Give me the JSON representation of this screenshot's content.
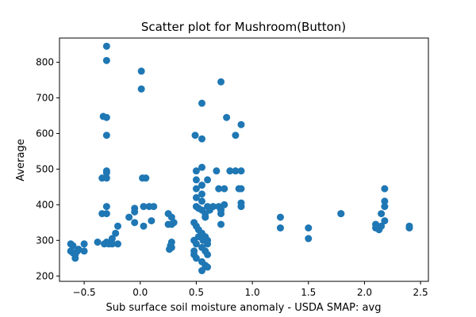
{
  "chart_data": {
    "type": "scatter",
    "title": "Scatter plot for Mushroom(Button)",
    "xlabel": "Sub surface soil moisture anomaly - USDA SMAP: avg",
    "ylabel": "Average",
    "xlim": [
      -0.72,
      2.57
    ],
    "ylim": [
      185,
      868
    ],
    "xticks": [
      -0.5,
      0.0,
      0.5,
      1.0,
      1.5,
      2.0,
      2.5
    ],
    "xtick_labels": [
      "−0.5",
      "0.0",
      "0.5",
      "1.0",
      "1.5",
      "2.0",
      "2.5"
    ],
    "yticks": [
      200,
      300,
      400,
      500,
      600,
      700,
      800
    ],
    "ytick_labels": [
      "200",
      "300",
      "400",
      "500",
      "600",
      "700",
      "800"
    ],
    "grid": false,
    "marker_color": "#1f77b4",
    "points": [
      [
        -0.3,
        845
      ],
      [
        -0.3,
        805
      ],
      [
        0.01,
        775
      ],
      [
        0.01,
        725
      ],
      [
        0.72,
        745
      ],
      [
        0.55,
        685
      ],
      [
        -0.33,
        648
      ],
      [
        -0.3,
        645
      ],
      [
        0.77,
        645
      ],
      [
        0.9,
        625
      ],
      [
        -0.3,
        595
      ],
      [
        0.49,
        595
      ],
      [
        0.85,
        595
      ],
      [
        0.55,
        585
      ],
      [
        -0.3,
        495
      ],
      [
        0.02,
        475
      ],
      [
        0.05,
        475
      ],
      [
        -0.34,
        475
      ],
      [
        -0.3,
        475
      ],
      [
        -0.3,
        490
      ],
      [
        0.5,
        495
      ],
      [
        0.55,
        505
      ],
      [
        0.68,
        495
      ],
      [
        0.8,
        495
      ],
      [
        0.85,
        495
      ],
      [
        0.9,
        495
      ],
      [
        0.5,
        470
      ],
      [
        0.6,
        470
      ],
      [
        0.5,
        445
      ],
      [
        0.55,
        455
      ],
      [
        0.7,
        445
      ],
      [
        0.75,
        445
      ],
      [
        0.88,
        445
      ],
      [
        0.9,
        445
      ],
      [
        0.55,
        430
      ],
      [
        0.5,
        420
      ],
      [
        0.55,
        410
      ],
      [
        -0.34,
        375
      ],
      [
        -0.3,
        375
      ],
      [
        -0.3,
        395
      ],
      [
        -0.1,
        365
      ],
      [
        -0.05,
        390
      ],
      [
        -0.05,
        380
      ],
      [
        0.03,
        395
      ],
      [
        0.08,
        395
      ],
      [
        0.12,
        395
      ],
      [
        -0.05,
        350
      ],
      [
        0.03,
        340
      ],
      [
        0.1,
        355
      ],
      [
        0.25,
        375
      ],
      [
        0.28,
        365
      ],
      [
        0.25,
        345
      ],
      [
        0.28,
        345
      ],
      [
        0.3,
        350
      ],
      [
        0.5,
        395
      ],
      [
        0.52,
        390
      ],
      [
        0.55,
        385
      ],
      [
        0.58,
        375
      ],
      [
        0.6,
        395
      ],
      [
        0.65,
        395
      ],
      [
        0.7,
        395
      ],
      [
        0.72,
        385
      ],
      [
        0.72,
        375
      ],
      [
        0.72,
        345
      ],
      [
        0.75,
        400
      ],
      [
        0.9,
        405
      ],
      [
        0.9,
        395
      ],
      [
        0.62,
        385
      ],
      [
        0.58,
        365
      ],
      [
        -0.2,
        340
      ],
      [
        -0.22,
        320
      ],
      [
        -0.25,
        305
      ],
      [
        -0.3,
        295
      ],
      [
        -0.32,
        290
      ],
      [
        -0.28,
        290
      ],
      [
        -0.25,
        290
      ],
      [
        -0.2,
        290
      ],
      [
        -0.38,
        295
      ],
      [
        -0.5,
        290
      ],
      [
        -0.5,
        270
      ],
      [
        -0.62,
        290
      ],
      [
        -0.6,
        285
      ],
      [
        -0.62,
        270
      ],
      [
        -0.6,
        265
      ],
      [
        -0.58,
        260
      ],
      [
        -0.55,
        275
      ],
      [
        -0.56,
        270
      ],
      [
        -0.58,
        250
      ],
      [
        0.28,
        295
      ],
      [
        0.27,
        285
      ],
      [
        0.28,
        280
      ],
      [
        0.26,
        275
      ],
      [
        0.48,
        350
      ],
      [
        0.5,
        340
      ],
      [
        0.52,
        330
      ],
      [
        0.55,
        320
      ],
      [
        0.58,
        310
      ],
      [
        0.6,
        300
      ],
      [
        0.48,
        300
      ],
      [
        0.5,
        290
      ],
      [
        0.55,
        280
      ],
      [
        0.58,
        270
      ],
      [
        0.6,
        260
      ],
      [
        0.48,
        260
      ],
      [
        0.5,
        250
      ],
      [
        0.55,
        240
      ],
      [
        0.58,
        230
      ],
      [
        0.6,
        225
      ],
      [
        0.55,
        215
      ],
      [
        0.48,
        270
      ],
      [
        0.52,
        310
      ],
      [
        0.56,
        300
      ],
      [
        0.6,
        290
      ],
      [
        1.25,
        365
      ],
      [
        1.25,
        335
      ],
      [
        1.5,
        335
      ],
      [
        1.5,
        305
      ],
      [
        1.79,
        375
      ],
      [
        1.79,
        375
      ],
      [
        2.1,
        345
      ],
      [
        2.1,
        335
      ],
      [
        2.13,
        330
      ],
      [
        2.15,
        375
      ],
      [
        2.15,
        340
      ],
      [
        2.18,
        445
      ],
      [
        2.18,
        410
      ],
      [
        2.18,
        395
      ],
      [
        2.18,
        355
      ],
      [
        2.4,
        340
      ],
      [
        2.4,
        335
      ]
    ]
  }
}
